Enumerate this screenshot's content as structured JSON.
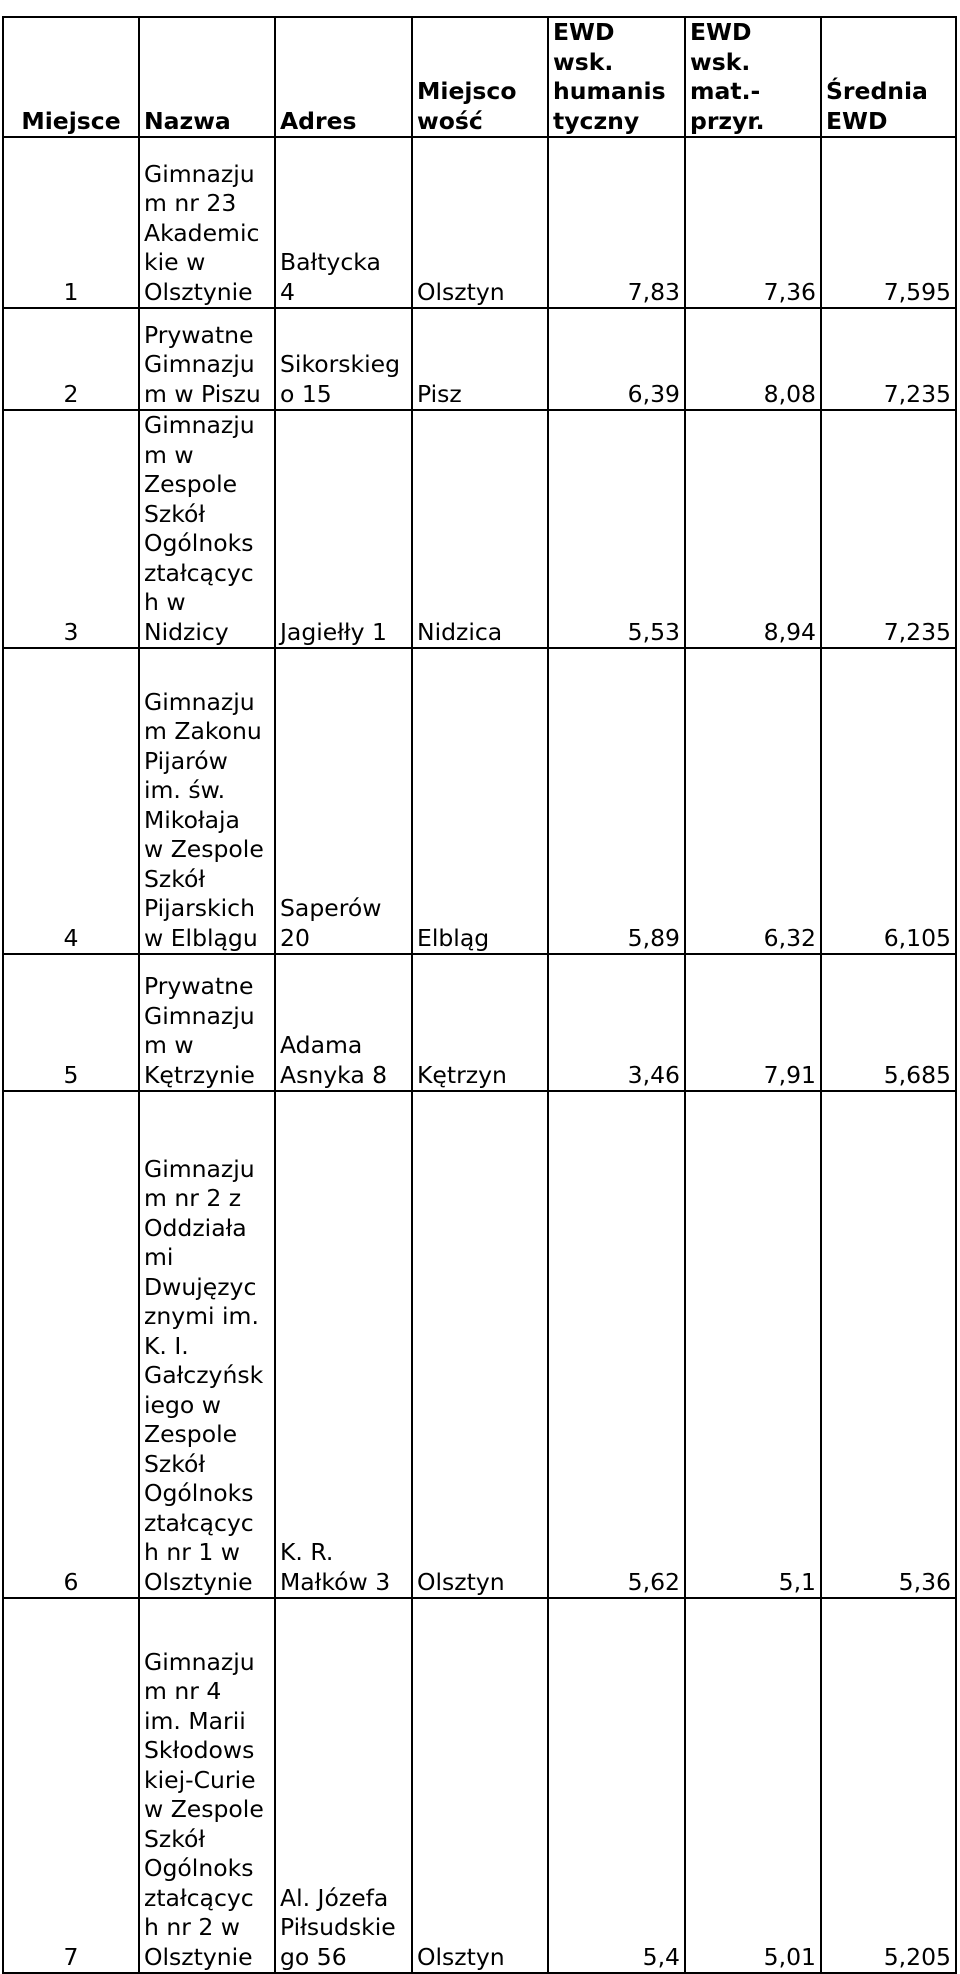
{
  "headers": {
    "miejsce": "Miejsce",
    "nazwa": "Nazwa",
    "adres": "Adres",
    "miejscowosc": "Miejsco\nwość",
    "ewd_hum": "EWD\nwsk.\nhumanis\ntyczny",
    "ewd_mat": "EWD\nwsk.\nmat.-\nprzyr.",
    "srednia": "Średnia\nEWD"
  },
  "rows": [
    {
      "miejsce": "1",
      "nazwa": "Gimnazju\nm nr 23\nAkademic\nkie w\nOlsztynie",
      "adres": "Bałtycka\n4",
      "miejscowosc": "Olsztyn",
      "ewd_hum": "7,83",
      "ewd_mat": "7,36",
      "srednia": "7,595"
    },
    {
      "miejsce": "2",
      "nazwa": "Prywatne\nGimnazju\nm w Piszu",
      "adres": "Sikorskieg\no 15",
      "miejscowosc": "Pisz",
      "ewd_hum": "6,39",
      "ewd_mat": "8,08",
      "srednia": "7,235"
    },
    {
      "miejsce": "3",
      "nazwa": "Gimnazju\nm w\nZespole\nSzkół\nOgólnoks\nztałcącyc\nh w\nNidzicy",
      "adres": "Jagiełły 1",
      "miejscowosc": "Nidzica",
      "ewd_hum": "5,53",
      "ewd_mat": "8,94",
      "srednia": "7,235"
    },
    {
      "miejsce": "4",
      "nazwa": "Gimnazju\nm Zakonu\nPijarów\nim. św.\nMikołaja\nw Zespole\nSzkół\nPijarskich\nw Elblągu",
      "adres": "Saperów\n20",
      "miejscowosc": "Elbląg",
      "ewd_hum": "5,89",
      "ewd_mat": "6,32",
      "srednia": "6,105"
    },
    {
      "miejsce": "5",
      "nazwa": "Prywatne\nGimnazju\nm w\nKętrzynie",
      "adres": "Adama\nAsnyka 8",
      "miejscowosc": "Kętrzyn",
      "ewd_hum": "3,46",
      "ewd_mat": "7,91",
      "srednia": "5,685"
    },
    {
      "miejsce": "6",
      "nazwa": "Gimnazju\nm nr 2 z\nOddziała\nmi\nDwujęzyc\nznymi im.\nK. I.\nGałczyńsk\niego w\nZespole\nSzkół\nOgólnoks\nztałcącyc\nh nr 1 w\nOlsztynie",
      "adres": "K. R.\nMałków 3",
      "miejscowosc": "Olsztyn",
      "ewd_hum": "5,62",
      "ewd_mat": "5,1",
      "srednia": "5,36"
    },
    {
      "miejsce": "7",
      "nazwa": "Gimnazju\nm nr 4\nim. Marii\nSkłodows\nkiej-Curie\nw Zespole\nSzkół\nOgólnoks\nztałcącyc\nh nr 2 w\nOlsztynie",
      "adres": "Al. Józefa\nPiłsudskie\ngo 56",
      "miejscowosc": "Olsztyn",
      "ewd_hum": "5,4",
      "ewd_mat": "5,01",
      "srednia": "5,205"
    }
  ]
}
